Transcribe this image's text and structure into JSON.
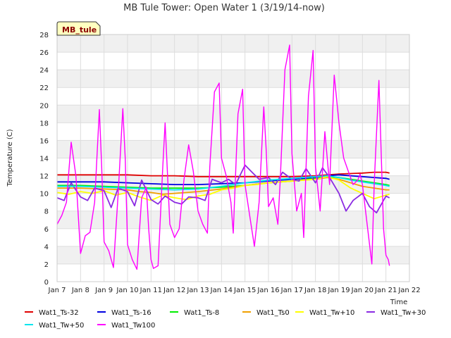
{
  "chart_data": {
    "type": "line",
    "title": "MB Tule Tower: Open Water 1 (3/19/14-now)",
    "xlabel": "Time",
    "ylabel": "Temperature (C)",
    "badge": "MB_tule",
    "xlim": [
      7,
      22
    ],
    "ylim": [
      0,
      28
    ],
    "xticks": [
      {
        "v": 7,
        "label": "Jan 7"
      },
      {
        "v": 8,
        "label": "Jan 8"
      },
      {
        "v": 9,
        "label": "Jan 9"
      },
      {
        "v": 10,
        "label": "Jan 10"
      },
      {
        "v": 11,
        "label": "Jan 11"
      },
      {
        "v": 12,
        "label": "Jan 12"
      },
      {
        "v": 13,
        "label": "Jan 13"
      },
      {
        "v": 14,
        "label": "Jan 14"
      },
      {
        "v": 15,
        "label": "Jan 15"
      },
      {
        "v": 16,
        "label": "Jan 16"
      },
      {
        "v": 17,
        "label": "Jan 17"
      },
      {
        "v": 18,
        "label": "Jan 18"
      },
      {
        "v": 19,
        "label": "Jan 19"
      },
      {
        "v": 20,
        "label": "Jan 20"
      },
      {
        "v": 21,
        "label": "Jan 21"
      },
      {
        "v": 22,
        "label": "Jan 22"
      }
    ],
    "yticks": [
      0,
      2,
      4,
      6,
      8,
      10,
      12,
      14,
      16,
      18,
      20,
      22,
      24,
      26,
      28
    ],
    "series": [
      {
        "name": "Wat1_Ts-32",
        "color": "#e00000",
        "x": [
          7,
          9,
          10,
          11,
          12,
          13,
          14,
          15,
          16,
          17,
          18,
          19,
          20,
          20.5,
          21,
          21.15
        ],
        "y": [
          12.1,
          12.1,
          12.1,
          12.0,
          12.0,
          11.9,
          11.9,
          11.9,
          11.9,
          11.9,
          12.0,
          12.2,
          12.3,
          12.4,
          12.4,
          12.3
        ]
      },
      {
        "name": "Wat1_Ts-16",
        "color": "#0000e0",
        "x": [
          7,
          9,
          10,
          11,
          12,
          13,
          14,
          15,
          16,
          17,
          18,
          18.5,
          19,
          19.5,
          20,
          20.5,
          21,
          21.15
        ],
        "y": [
          11.3,
          11.3,
          11.2,
          11.1,
          11.0,
          11.0,
          11.1,
          11.2,
          11.4,
          11.6,
          11.8,
          12.0,
          12.1,
          12.0,
          11.9,
          11.8,
          11.7,
          11.6
        ]
      },
      {
        "name": "Wat1_Ts-8",
        "color": "#00ee00",
        "x": [
          7,
          8,
          9,
          10,
          11,
          12,
          13,
          14,
          15,
          16,
          17,
          18,
          18.5,
          19,
          19.5,
          20,
          20.5,
          21,
          21.15
        ],
        "y": [
          10.9,
          10.9,
          10.8,
          10.7,
          10.6,
          10.6,
          10.6,
          10.7,
          10.9,
          11.2,
          11.4,
          11.7,
          11.9,
          11.8,
          11.6,
          11.4,
          11.2,
          11.0,
          10.9
        ]
      },
      {
        "name": "Wat1_Ts0",
        "color": "#f0a000",
        "x": [
          7,
          8,
          9,
          10,
          10.5,
          11,
          11.5,
          12,
          13,
          14,
          15,
          16,
          17,
          18,
          18.5,
          19,
          19.5,
          20,
          20.5,
          21,
          21.15
        ],
        "y": [
          10.6,
          10.6,
          10.5,
          10.4,
          10.2,
          10.1,
          9.9,
          10.0,
          10.2,
          10.5,
          10.9,
          11.2,
          11.4,
          11.6,
          11.8,
          11.6,
          11.2,
          10.8,
          10.6,
          10.4,
          10.4
        ]
      },
      {
        "name": "Wat1_Tw+10",
        "color": "#ffff00",
        "x": [
          7,
          7.5,
          8,
          8.5,
          9,
          9.5,
          10,
          10.5,
          11,
          11.5,
          12,
          12.5,
          13,
          13.5,
          14,
          14.5,
          15,
          15.5,
          16,
          16.5,
          17,
          17.5,
          18,
          18.5,
          19,
          19.5,
          20,
          20.5,
          21,
          21.15
        ],
        "y": [
          10.1,
          9.9,
          10.2,
          10.0,
          10.3,
          9.8,
          10.1,
          9.6,
          9.2,
          9.8,
          9.5,
          9.3,
          9.7,
          9.9,
          10.4,
          10.6,
          10.9,
          11.0,
          11.2,
          11.3,
          11.4,
          11.5,
          11.6,
          11.9,
          11.5,
          10.6,
          10.0,
          9.4,
          9.8,
          9.9
        ]
      },
      {
        "name": "Wat1_Tw+30",
        "color": "#8b2be2",
        "x": [
          7,
          7.3,
          7.6,
          8,
          8.3,
          8.6,
          9,
          9.3,
          9.6,
          10,
          10.3,
          10.6,
          11,
          11.3,
          11.6,
          12,
          12.3,
          12.6,
          13,
          13.3,
          13.6,
          14,
          14.3,
          14.6,
          15,
          15.3,
          15.6,
          16,
          16.3,
          16.6,
          17,
          17.3,
          17.6,
          18,
          18.3,
          18.6,
          19,
          19.3,
          19.6,
          20,
          20.3,
          20.6,
          21,
          21.15
        ],
        "y": [
          9.5,
          9.2,
          11.2,
          9.6,
          9.2,
          10.6,
          10.3,
          8.4,
          10.6,
          10.2,
          8.6,
          11.5,
          9.3,
          8.8,
          9.7,
          9.0,
          8.8,
          9.6,
          9.5,
          9.2,
          11.6,
          11.2,
          11.6,
          11.0,
          13.2,
          12.4,
          11.6,
          11.8,
          11.0,
          12.4,
          11.6,
          11.4,
          12.8,
          11.2,
          12.9,
          11.8,
          10.0,
          8.0,
          9.2,
          10.0,
          8.5,
          7.8,
          9.7,
          9.5
        ]
      },
      {
        "name": "Wat1_Tw+50",
        "color": "#00e5ee",
        "x": [
          7,
          8,
          9,
          10,
          11,
          12,
          13,
          14,
          15,
          16,
          17,
          18,
          18.5,
          19,
          19.5,
          20,
          20.5,
          21,
          21.15
        ],
        "y": [
          10.8,
          10.8,
          10.7,
          10.6,
          10.5,
          10.4,
          10.5,
          10.8,
          11.2,
          11.5,
          11.7,
          11.9,
          12.0,
          11.8,
          11.5,
          11.3,
          11.1,
          10.9,
          10.8
        ]
      },
      {
        "name": "Wat1_Tw100",
        "color": "#ff00ff",
        "x": [
          7,
          7.2,
          7.4,
          7.5,
          7.6,
          7.8,
          8.0,
          8.2,
          8.4,
          8.6,
          8.8,
          8.9,
          9.0,
          9.2,
          9.4,
          9.6,
          9.8,
          9.9,
          10.0,
          10.2,
          10.4,
          10.6,
          10.8,
          10.9,
          11.0,
          11.1,
          11.3,
          11.5,
          11.6,
          11.8,
          12.0,
          12.2,
          12.4,
          12.6,
          12.8,
          13.0,
          13.2,
          13.4,
          13.5,
          13.7,
          13.9,
          14.0,
          14.2,
          14.4,
          14.5,
          14.7,
          14.9,
          15.0,
          15.2,
          15.4,
          15.6,
          15.8,
          15.9,
          16.0,
          16.2,
          16.4,
          16.5,
          16.7,
          16.9,
          17.0,
          17.2,
          17.4,
          17.5,
          17.7,
          17.9,
          18.0,
          18.2,
          18.4,
          18.6,
          18.8,
          19.0,
          19.2,
          19.4,
          19.6,
          19.8,
          19.9,
          20.0,
          20.2,
          20.4,
          20.5,
          20.7,
          20.9,
          21.0,
          21.1,
          21.15
        ],
        "y": [
          6.5,
          7.5,
          9.0,
          12.5,
          15.8,
          12.0,
          3.2,
          5.2,
          5.6,
          9.0,
          19.5,
          13.0,
          4.5,
          3.5,
          1.6,
          10.0,
          19.6,
          14.0,
          4.2,
          2.5,
          1.4,
          9.5,
          10.7,
          6.0,
          2.5,
          1.5,
          1.8,
          13.0,
          18.0,
          6.5,
          5.0,
          6.0,
          11.5,
          15.5,
          12.5,
          8.0,
          6.5,
          5.5,
          13.0,
          21.5,
          22.5,
          14.0,
          12.0,
          9.0,
          5.5,
          19.0,
          21.8,
          11.0,
          7.5,
          4.0,
          9.0,
          19.8,
          15.0,
          8.5,
          9.5,
          6.5,
          11.5,
          24.0,
          26.8,
          14.5,
          8.0,
          10.0,
          5.0,
          21.0,
          26.2,
          13.0,
          8.0,
          17.0,
          11.0,
          23.4,
          18.0,
          14.0,
          12.5,
          11.0,
          11.5,
          12.2,
          11.0,
          6.5,
          2.0,
          11.0,
          22.8,
          6.0,
          3.0,
          2.5,
          1.8
        ]
      }
    ]
  }
}
